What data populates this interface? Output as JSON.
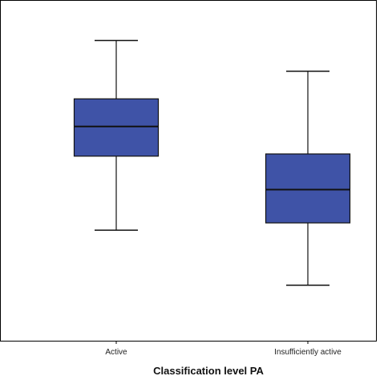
{
  "chart_data": {
    "type": "boxplot",
    "xlabel": "Classification level PA",
    "ylabel": "",
    "categories": [
      "Active",
      "Insufficiently active"
    ],
    "boxes": [
      {
        "category": "Active",
        "min": 0.3244,
        "q1": 0.5417,
        "median": 0.6289,
        "q3": 0.7099,
        "max": 0.8812
      },
      {
        "category": "Insufficiently active",
        "min": 0.1628,
        "q1": 0.3458,
        "median": 0.4435,
        "q3": 0.5482,
        "max": 0.7908
      }
    ],
    "ylim": [
      0,
      1
    ],
    "grid": false,
    "box_color": "#3F53A7",
    "median_color": "#111111",
    "whisker_color": "#111111"
  }
}
